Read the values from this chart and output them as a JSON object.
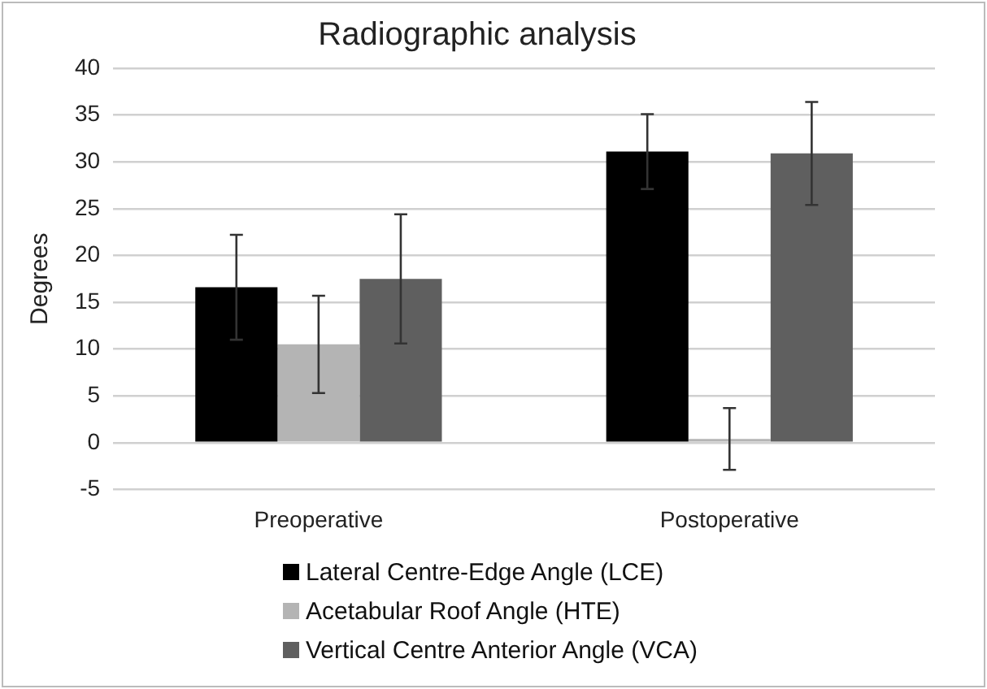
{
  "chart_data": {
    "type": "bar",
    "title": "Radiographic analysis",
    "ylabel": "Degrees",
    "categories": [
      "Preoperative",
      "Postoperative"
    ],
    "series": [
      {
        "name": "Lateral Centre-Edge Angle (LCE)",
        "color": "#000000",
        "values": [
          16.6,
          31.1
        ],
        "errors": [
          5.6,
          4.0
        ]
      },
      {
        "name": "Acetabular Roof Angle (HTE)",
        "color": "#b4b4b4",
        "values": [
          10.5,
          0.4
        ],
        "errors": [
          5.2,
          3.3
        ]
      },
      {
        "name": "Vertical Centre Anterior Angle (VCA)",
        "color": "#5f5f5f",
        "values": [
          17.5,
          30.9
        ],
        "errors": [
          6.9,
          5.5
        ]
      }
    ],
    "ylim": [
      -5,
      40
    ],
    "yticks": [
      -5,
      0,
      5,
      10,
      15,
      20,
      25,
      30,
      35,
      40
    ],
    "grid": "y",
    "legend": "bottom"
  }
}
